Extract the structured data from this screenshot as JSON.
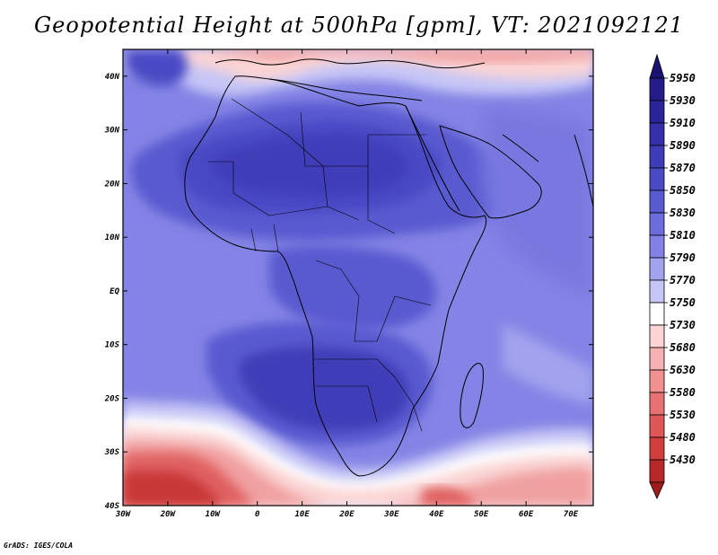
{
  "title": "Geopotential Height at 500hPa [gpm], VT: 2021092121",
  "credit": "GrADS: IGES/COLA",
  "map": {
    "lon_range": [
      -30,
      75
    ],
    "lat_range": [
      -40,
      45
    ],
    "x_ticks": [
      {
        "lon": -30,
        "label": "30W"
      },
      {
        "lon": -20,
        "label": "20W"
      },
      {
        "lon": -10,
        "label": "10W"
      },
      {
        "lon": 0,
        "label": "0"
      },
      {
        "lon": 10,
        "label": "10E"
      },
      {
        "lon": 20,
        "label": "20E"
      },
      {
        "lon": 30,
        "label": "30E"
      },
      {
        "lon": 40,
        "label": "40E"
      },
      {
        "lon": 50,
        "label": "50E"
      },
      {
        "lon": 60,
        "label": "60E"
      },
      {
        "lon": 70,
        "label": "70E"
      }
    ],
    "y_ticks": [
      {
        "lat": 40,
        "label": "40N"
      },
      {
        "lat": 30,
        "label": "30N"
      },
      {
        "lat": 20,
        "label": "20N"
      },
      {
        "lat": 10,
        "label": "10N"
      },
      {
        "lat": 0,
        "label": "EQ"
      },
      {
        "lat": -10,
        "label": "10S"
      },
      {
        "lat": -20,
        "label": "20S"
      },
      {
        "lat": -30,
        "label": "30S"
      },
      {
        "lat": -40,
        "label": "40S"
      }
    ]
  },
  "colorbar": {
    "levels": [
      {
        "label": "5950",
        "color": "#241c88"
      },
      {
        "label": "5930",
        "color": "#2b2498"
      },
      {
        "label": "5910",
        "color": "#3530aa"
      },
      {
        "label": "5890",
        "color": "#3f3cb8"
      },
      {
        "label": "5870",
        "color": "#4a4ac4"
      },
      {
        "label": "5850",
        "color": "#5a5ad0"
      },
      {
        "label": "5830",
        "color": "#6c6cdc"
      },
      {
        "label": "5810",
        "color": "#8282e6"
      },
      {
        "label": "5790",
        "color": "#a2a2ee"
      },
      {
        "label": "5770",
        "color": "#c6c6f6"
      },
      {
        "label": "5750",
        "color": "#ffffff"
      },
      {
        "label": "5730",
        "color": "#fbd4d4"
      },
      {
        "label": "5680",
        "color": "#f6b2b2"
      },
      {
        "label": "5630",
        "color": "#f09090"
      },
      {
        "label": "5580",
        "color": "#e87272"
      },
      {
        "label": "5530",
        "color": "#de5656"
      },
      {
        "label": "5480",
        "color": "#d03e3e"
      },
      {
        "label": "5430",
        "color": "#b82828"
      }
    ],
    "top_arrow_color": "#1a1470",
    "bottom_arrow_color": "#a01c1c"
  }
}
